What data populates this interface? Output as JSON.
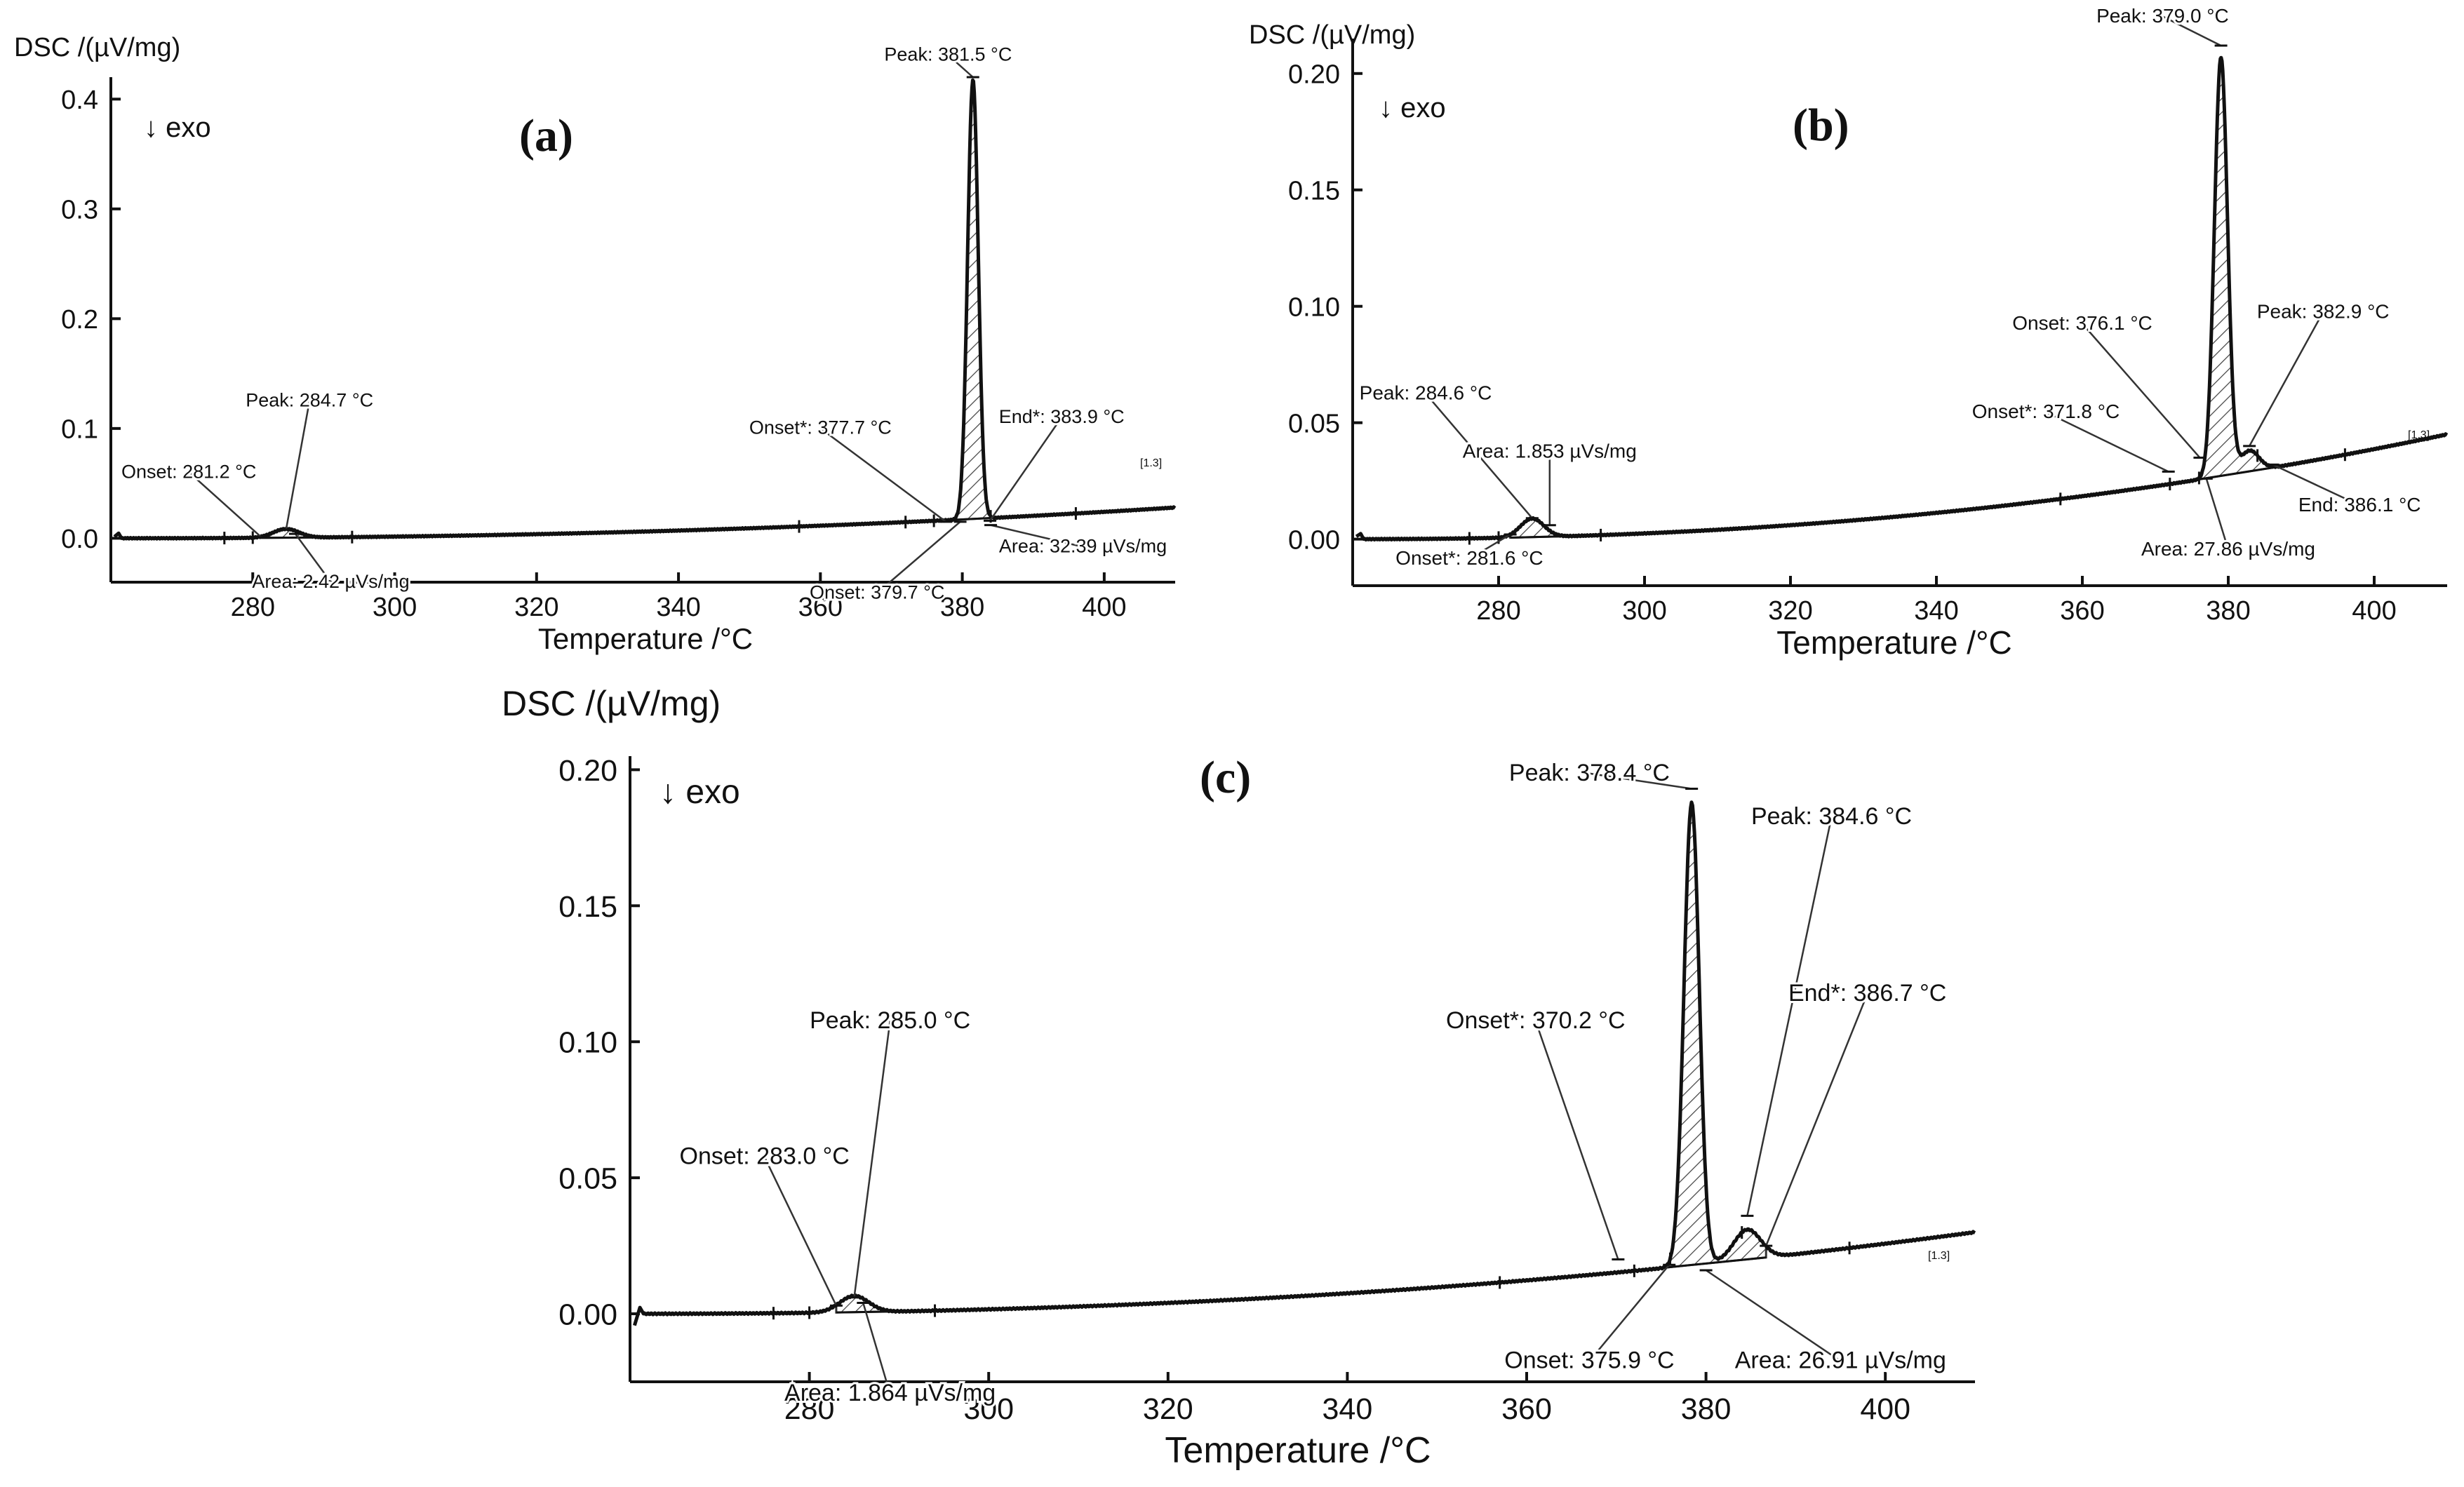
{
  "chart_data": [
    {
      "id": "a",
      "type": "line",
      "panel_label": "(a)",
      "ylabel": "DSC /(µV/mg)",
      "xlabel": "Temperature /°C",
      "direction_label": "↓ exo",
      "range_tag": "[1.3]",
      "xlim": [
        260,
        410
      ],
      "ylim": [
        -0.04,
        0.42
      ],
      "xticks": [
        280,
        300,
        320,
        340,
        360,
        380,
        400
      ],
      "yticks": [
        0.0,
        0.1,
        0.2,
        0.3,
        0.4
      ],
      "ytick_labels": [
        "0.0",
        "0.1",
        "0.2",
        "0.3",
        "0.4"
      ],
      "baseline": {
        "start_value": 0.0,
        "end_value": 0.028
      },
      "peaks": [
        {
          "center": 284.7,
          "height": 0.008,
          "width": 1.8
        },
        {
          "center": 381.5,
          "height": 0.4,
          "width": 0.75
        }
      ],
      "hatched_regions": [
        [
          281.2,
          288.5
        ],
        [
          377.7,
          383.9
        ]
      ],
      "markers": [
        {
          "label": "Peak: 381.5 °C",
          "x": 381.5,
          "y": 0.42,
          "text_x": 378,
          "text_y": 0.435
        },
        {
          "label": "Peak: 284.7 °C",
          "x": 284.7,
          "y": 0.008,
          "text_x": 288,
          "text_y": 0.12
        },
        {
          "label": "Onset: 281.2 °C",
          "x": 281.2,
          "y": 0.001,
          "text_x": 271,
          "text_y": 0.055
        },
        {
          "label": "Area: 2.42 µVs/mg",
          "x": 286,
          "y": 0.004,
          "text_x": 291,
          "text_y": -0.045
        },
        {
          "label": "Onset*: 377.7 °C",
          "x": 377.7,
          "y": 0.015,
          "text_x": 360,
          "text_y": 0.095
        },
        {
          "label": "End*: 383.9 °C",
          "x": 383.9,
          "y": 0.016,
          "text_x": 394,
          "text_y": 0.105
        },
        {
          "label": "Onset: 379.7 °C",
          "x": 379.7,
          "y": 0.015,
          "text_x": 368,
          "text_y": -0.055
        },
        {
          "label": "Area: 32.39 µVs/mg",
          "x": 384,
          "y": 0.012,
          "text_x": 397,
          "text_y": -0.013
        }
      ]
    },
    {
      "id": "b",
      "type": "line",
      "panel_label": "(b)",
      "ylabel": "DSC /(µV/mg)",
      "xlabel": "Temperature /°C",
      "direction_label": "↓ exo",
      "range_tag": "[1.3]",
      "xlim": [
        260,
        410
      ],
      "ylim": [
        -0.02,
        0.215
      ],
      "xticks": [
        280,
        300,
        320,
        340,
        360,
        380,
        400
      ],
      "yticks": [
        0.0,
        0.05,
        0.1,
        0.15,
        0.2
      ],
      "ytick_labels": [
        "0.00",
        "0.05",
        "0.10",
        "0.15",
        "0.20"
      ],
      "baseline": {
        "start_value": 0.0,
        "end_value": 0.045
      },
      "peaks": [
        {
          "center": 284.6,
          "height": 0.008,
          "width": 1.6
        },
        {
          "center": 379.0,
          "height": 0.18,
          "width": 0.9
        },
        {
          "center": 382.9,
          "height": 0.009,
          "width": 1.3
        }
      ],
      "hatched_regions": [
        [
          281.6,
          288.5
        ],
        [
          371.8,
          386.1
        ]
      ],
      "markers": [
        {
          "label": "Peak: 379.0 °C",
          "x": 379.0,
          "y": 0.212,
          "text_x": 371,
          "text_y": 0.222
        },
        {
          "label": "Peak: 284.6 °C",
          "x": 284.6,
          "y": 0.009,
          "text_x": 270,
          "text_y": 0.06
        },
        {
          "label": "Area: 1.853 µVs/mg",
          "x": 287,
          "y": 0.006,
          "text_x": 287,
          "text_y": 0.035
        },
        {
          "label": "Onset*: 281.6 °C",
          "x": 281.6,
          "y": 0.002,
          "text_x": 276,
          "text_y": -0.011
        },
        {
          "label": "Onset: 376.1 °C",
          "x": 376.1,
          "y": 0.035,
          "text_x": 360,
          "text_y": 0.09
        },
        {
          "label": "Onset*: 371.8 °C",
          "x": 371.8,
          "y": 0.029,
          "text_x": 355,
          "text_y": 0.052
        },
        {
          "label": "Peak: 382.9 °C",
          "x": 382.9,
          "y": 0.04,
          "text_x": 393,
          "text_y": 0.095
        },
        {
          "label": "End: 386.1 °C",
          "x": 386.1,
          "y": 0.032,
          "text_x": 398,
          "text_y": 0.012
        },
        {
          "label": "Area: 27.86 µVs/mg",
          "x": 377,
          "y": 0.026,
          "text_x": 380,
          "text_y": -0.007
        }
      ]
    },
    {
      "id": "c",
      "type": "line",
      "panel_label": "(c)",
      "ylabel": "DSC /(µV/mg)",
      "xlabel": "Temperature /°C",
      "direction_label": "↓ exo",
      "range_tag": "[1.3]",
      "xlim": [
        260,
        410
      ],
      "ylim": [
        -0.025,
        0.205
      ],
      "xticks": [
        280,
        300,
        320,
        340,
        360,
        380,
        400
      ],
      "yticks": [
        0.0,
        0.05,
        0.1,
        0.15,
        0.2
      ],
      "ytick_labels": [
        "0.00",
        "0.05",
        "0.10",
        "0.15",
        "0.20"
      ],
      "baseline": {
        "start_value": 0.0,
        "end_value": 0.03
      },
      "peaks": [
        {
          "center": 285.0,
          "height": 0.006,
          "width": 1.6
        },
        {
          "center": 378.4,
          "height": 0.17,
          "width": 0.85
        },
        {
          "center": 384.6,
          "height": 0.011,
          "width": 1.5
        }
      ],
      "hatched_regions": [
        [
          283.0,
          290.5
        ],
        [
          370.2,
          386.7
        ]
      ],
      "markers": [
        {
          "label": "Peak: 378.4 °C",
          "x": 378.4,
          "y": 0.193,
          "text_x": 367,
          "text_y": 0.196
        },
        {
          "label": "Peak: 285.0 °C",
          "x": 285.0,
          "y": 0.006,
          "text_x": 289,
          "text_y": 0.105
        },
        {
          "label": "Onset: 283.0 °C",
          "x": 283.0,
          "y": 0.003,
          "text_x": 275,
          "text_y": 0.055
        },
        {
          "label": "Area: 1.864 µVs/mg",
          "x": 286,
          "y": 0.004,
          "text_x": 289,
          "text_y": -0.032
        },
        {
          "label": "Onset*: 370.2 °C",
          "x": 370.2,
          "y": 0.02,
          "text_x": 361,
          "text_y": 0.105
        },
        {
          "label": "Onset: 375.9 °C",
          "x": 375.9,
          "y": 0.018,
          "text_x": 367,
          "text_y": -0.02
        },
        {
          "label": "Peak: 384.6 °C",
          "x": 384.6,
          "y": 0.036,
          "text_x": 394,
          "text_y": 0.18
        },
        {
          "label": "End*: 386.7 °C",
          "x": 386.7,
          "y": 0.025,
          "text_x": 398,
          "text_y": 0.115
        },
        {
          "label": "Area: 26.91 µVs/mg",
          "x": 380,
          "y": 0.016,
          "text_x": 395,
          "text_y": -0.02
        }
      ]
    }
  ]
}
